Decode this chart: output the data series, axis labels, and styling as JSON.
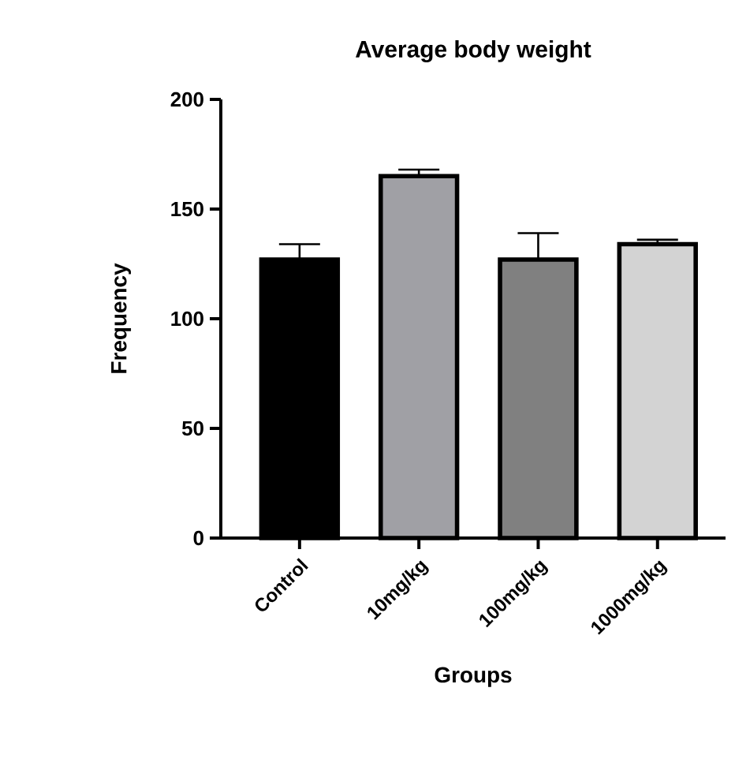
{
  "chart_data": {
    "type": "bar",
    "title": "Average body weight",
    "xlabel": "Groups",
    "ylabel": "Frequency",
    "categories": [
      "Control",
      "10mg/kg",
      "100mg/kg",
      "1000mg/kg"
    ],
    "values": [
      127,
      165,
      127,
      134
    ],
    "errors": [
      [
        127,
        134
      ],
      [
        165,
        168
      ],
      [
        127,
        139
      ],
      [
        134,
        136
      ]
    ],
    "colors": [
      "#000000",
      "#a0a0a5",
      "#808080",
      "#d3d3d3"
    ],
    "ylim": [
      0,
      200
    ],
    "yticks": [
      0,
      50,
      100,
      150,
      200
    ]
  }
}
